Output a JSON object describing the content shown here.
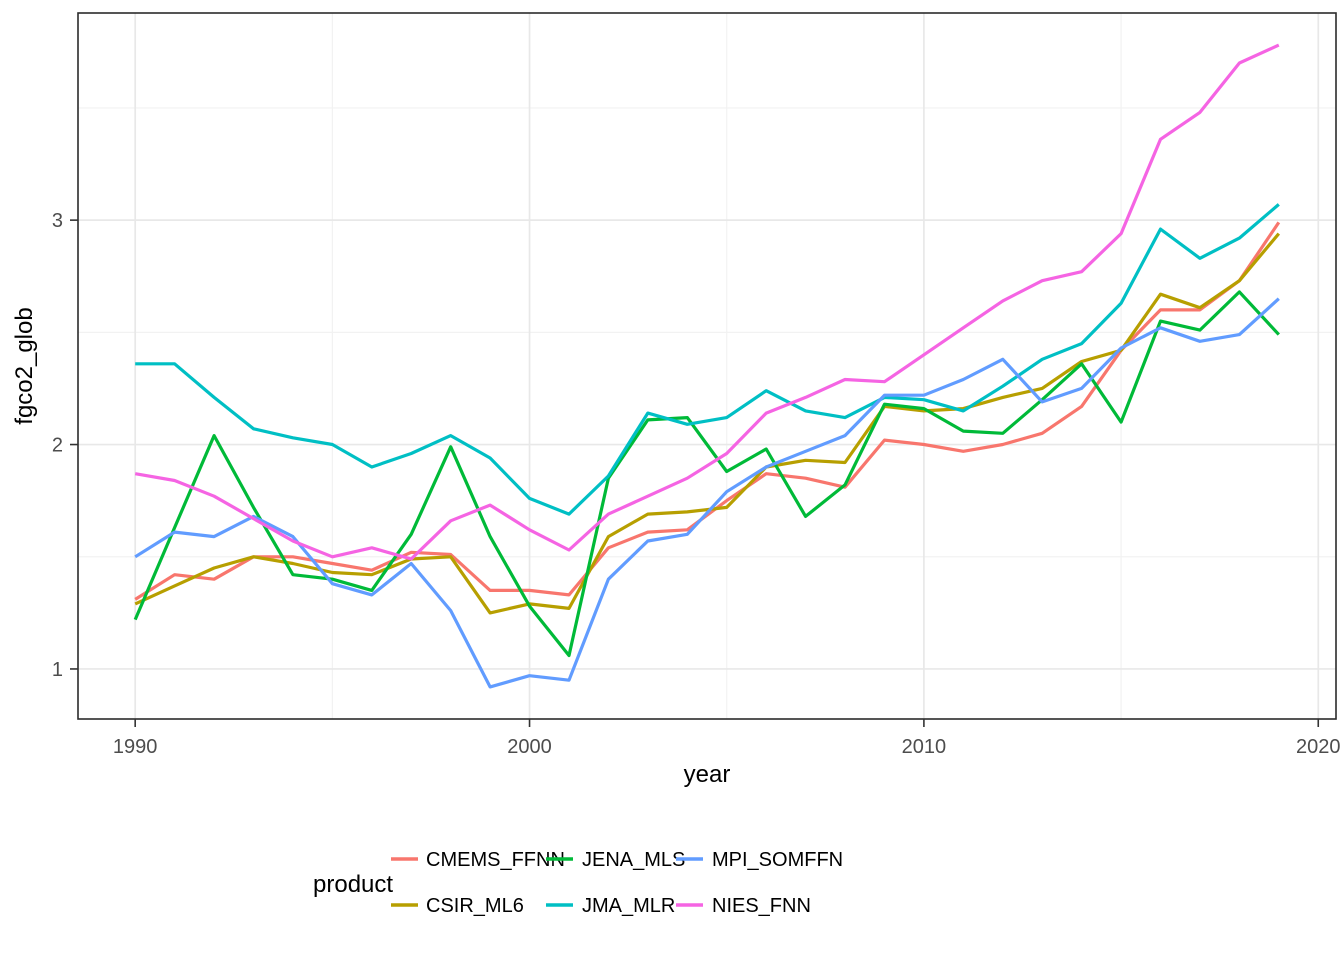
{
  "figure": {
    "ylabel": "fgco2_glob",
    "xlabel": "year",
    "legend_title": "product"
  },
  "axes": {
    "x_range": [
      1988.55,
      2020.45
    ],
    "y_range": [
      0.777,
      3.923
    ],
    "x_major_ticks": [
      1990,
      2000,
      2010,
      2020
    ],
    "x_tick_labels": [
      "1990",
      "2000",
      "2010",
      "2020"
    ],
    "x_minor_ticks": [
      1995,
      2005,
      2015
    ],
    "y_major_ticks": [
      1,
      2,
      3
    ],
    "y_tick_labels": [
      "1",
      "2",
      "3"
    ],
    "y_minor_ticks": [
      1.5,
      2.5,
      3.5
    ]
  },
  "style_colors": {
    "grid_major": "#e8e8e8",
    "grid_minor": "#f2f2f2",
    "panel_border": "#2b2b2b",
    "tick_mark": "#333333",
    "tick_text": "#4d4d4d"
  },
  "chart_data": {
    "type": "line",
    "title": "",
    "xlabel": "year",
    "ylabel": "fgco2_glob",
    "legend_title": "product",
    "legend_position": "bottom",
    "grid": true,
    "xlim": [
      1988.55,
      2020.45
    ],
    "ylim": [
      0.777,
      3.923
    ],
    "x": [
      1990,
      1991,
      1992,
      1993,
      1994,
      1995,
      1996,
      1997,
      1998,
      1999,
      2000,
      2001,
      2002,
      2003,
      2004,
      2005,
      2006,
      2007,
      2008,
      2009,
      2010,
      2011,
      2012,
      2013,
      2014,
      2015,
      2016,
      2017,
      2018,
      2019
    ],
    "series": [
      {
        "name": "CMEMS_FFNN",
        "color": "#F8766D",
        "values": [
          1.31,
          1.42,
          1.4,
          1.5,
          1.5,
          1.47,
          1.44,
          1.52,
          1.51,
          1.35,
          1.35,
          1.33,
          1.54,
          1.61,
          1.62,
          1.75,
          1.87,
          1.85,
          1.81,
          2.02,
          2.0,
          1.97,
          2.0,
          2.05,
          2.17,
          2.42,
          2.6,
          2.6,
          2.73,
          2.99
        ]
      },
      {
        "name": "CSIR_ML6",
        "color": "#B79F00",
        "values": [
          1.29,
          1.37,
          1.45,
          1.5,
          1.47,
          1.43,
          1.42,
          1.49,
          1.5,
          1.25,
          1.29,
          1.27,
          1.59,
          1.69,
          1.7,
          1.72,
          1.9,
          1.93,
          1.92,
          2.17,
          2.15,
          2.16,
          2.21,
          2.25,
          2.37,
          2.42,
          2.67,
          2.61,
          2.73,
          2.94
        ]
      },
      {
        "name": "JENA_MLS",
        "color": "#00BA38",
        "values": [
          1.22,
          1.63,
          2.04,
          1.72,
          1.42,
          1.4,
          1.35,
          1.6,
          1.99,
          1.59,
          1.28,
          1.06,
          1.85,
          2.11,
          2.12,
          1.88,
          1.98,
          1.68,
          1.82,
          2.18,
          2.16,
          2.06,
          2.05,
          2.2,
          2.36,
          2.1,
          2.55,
          2.51,
          2.68,
          2.49
        ]
      },
      {
        "name": "JMA_MLR",
        "color": "#00BFC4",
        "values": [
          2.36,
          2.36,
          2.21,
          2.07,
          2.03,
          2.0,
          1.9,
          1.96,
          2.04,
          1.94,
          1.76,
          1.69,
          1.86,
          2.14,
          2.09,
          2.12,
          2.24,
          2.15,
          2.12,
          2.21,
          2.2,
          2.15,
          2.26,
          2.38,
          2.45,
          2.63,
          2.96,
          2.83,
          2.92,
          3.07
        ]
      },
      {
        "name": "MPI_SOMFFN",
        "color": "#619CFF",
        "values": [
          1.5,
          1.61,
          1.59,
          1.68,
          1.59,
          1.38,
          1.33,
          1.47,
          1.26,
          0.92,
          0.97,
          0.95,
          1.4,
          1.57,
          1.6,
          1.79,
          1.9,
          1.97,
          2.04,
          2.22,
          2.22,
          2.29,
          2.38,
          2.19,
          2.25,
          2.43,
          2.52,
          2.46,
          2.49,
          2.65
        ]
      },
      {
        "name": "NIES_FNN",
        "color": "#F564E3",
        "values": [
          1.87,
          1.84,
          1.77,
          1.67,
          1.57,
          1.5,
          1.54,
          1.49,
          1.66,
          1.73,
          1.62,
          1.53,
          1.69,
          1.77,
          1.85,
          1.96,
          2.14,
          2.21,
          2.29,
          2.28,
          2.4,
          2.52,
          2.64,
          2.73,
          2.77,
          2.94,
          3.36,
          3.48,
          3.7,
          3.78
        ]
      }
    ]
  }
}
